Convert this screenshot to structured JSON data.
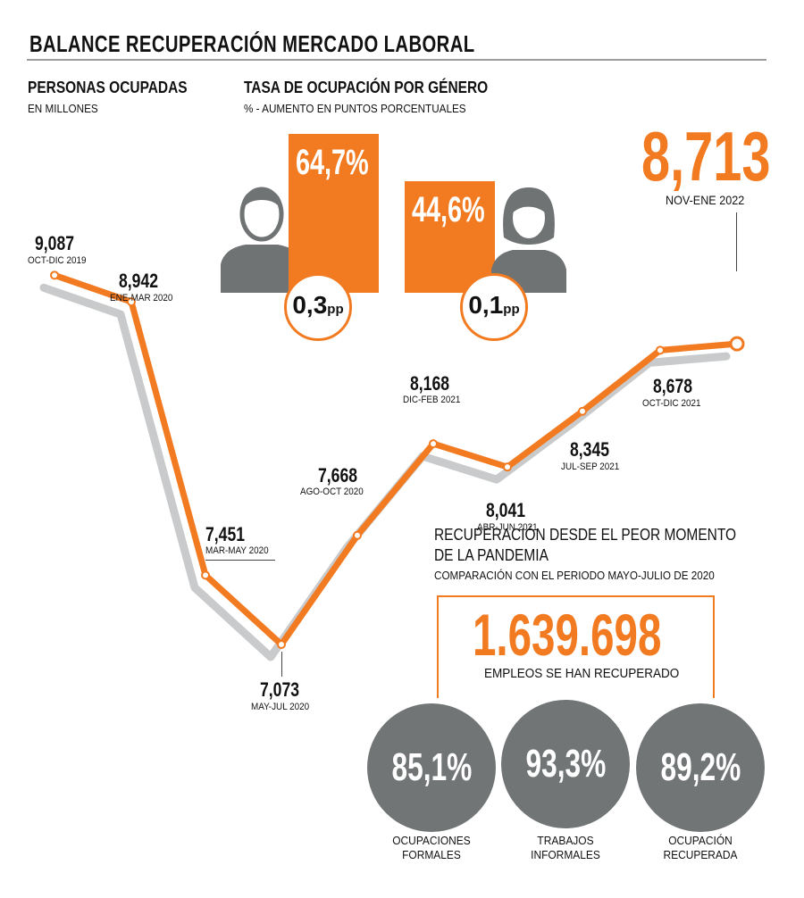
{
  "title": "BALANCE RECUPERACIÓN MERCADO LABORAL",
  "chart_data": {
    "type": "line",
    "title": "PERSONAS OCUPADAS",
    "subtitle": "EN MILLONES",
    "points": [
      {
        "label": "9,087",
        "period": "OCT-DIC 2019",
        "y": 9.087
      },
      {
        "label": "8,942",
        "period": "ENE-MAR 2020",
        "y": 8.942
      },
      {
        "label": "7,451",
        "period": "MAR-MAY 2020",
        "y": 7.451
      },
      {
        "label": "7,073",
        "period": "MAY-JUL 2020",
        "y": 7.073
      },
      {
        "label": "7,668",
        "period": "AGO-OCT 2020",
        "y": 7.668
      },
      {
        "label": "8,168",
        "period": "DIC-FEB 2021",
        "y": 8.168
      },
      {
        "label": "8,041",
        "period": "ABR-JUN 2021",
        "y": 8.041
      },
      {
        "label": "8,345",
        "period": "JUL-SEP 2021",
        "y": 8.345
      },
      {
        "label": "8,678",
        "period": "OCT-DIC 2021",
        "y": 8.678
      },
      {
        "label": "8,713",
        "period": "NOV-ENE 2022",
        "y": 8.713
      }
    ],
    "line_color": "#f27a21",
    "shadow_color": "#c9cacb"
  },
  "gender": {
    "title": "TASA DE OCUPACIÓN POR GÉNERO",
    "subtitle": "% -  AUMENTO EN PUNTOS PORCENTUALES",
    "men": {
      "rate": "64,7%",
      "increase": "0,3",
      "unit": "pp"
    },
    "women": {
      "rate": "44,6%",
      "increase": "0,1",
      "unit": "pp"
    }
  },
  "recovery": {
    "title_line1": "RECUPERACIÓN DESDE EL PEOR MOMENTO",
    "title_line2": "DE LA PANDEMIA",
    "subtitle": "COMPARACIÓN CON EL PERIODO MAYO-JULIO DE 2020",
    "total": "1.639.698",
    "total_label": "EMPLEOS SE HAN RECUPERADO",
    "items": [
      {
        "value": "85,1%",
        "label_line1": "OCUPACIONES",
        "label_line2": "FORMALES"
      },
      {
        "value": "93,3%",
        "label_line1": "TRABAJOS",
        "label_line2": "INFORMALES"
      },
      {
        "value": "89,2%",
        "label_line1": "OCUPACIÓN",
        "label_line2": "RECUPERADA"
      }
    ]
  },
  "colors": {
    "orange": "#f27a21",
    "gray": "#717576",
    "icon_gray": "#6f7373"
  }
}
